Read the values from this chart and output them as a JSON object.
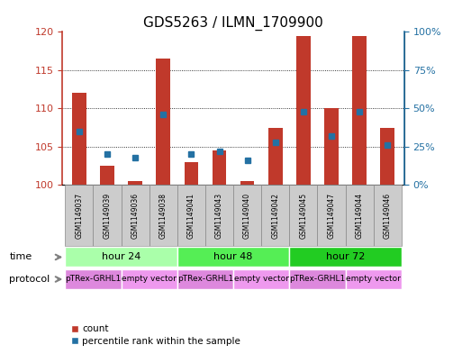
{
  "title": "GDS5263 / ILMN_1709900",
  "samples": [
    "GSM1149037",
    "GSM1149039",
    "GSM1149036",
    "GSM1149038",
    "GSM1149041",
    "GSM1149043",
    "GSM1149040",
    "GSM1149042",
    "GSM1149045",
    "GSM1149047",
    "GSM1149044",
    "GSM1149046"
  ],
  "count_values": [
    112,
    102.5,
    100.5,
    116.5,
    103,
    104.5,
    100.5,
    107.5,
    119.5,
    110,
    119.5,
    107.5
  ],
  "percentile_values": [
    35,
    20,
    18,
    46,
    20,
    22,
    16,
    28,
    48,
    32,
    48,
    26
  ],
  "ylim_left": [
    100,
    120
  ],
  "ylim_right": [
    0,
    100
  ],
  "yticks_left": [
    100,
    105,
    110,
    115,
    120
  ],
  "yticks_right": [
    0,
    25,
    50,
    75,
    100
  ],
  "bar_color": "#C0392B",
  "dot_color": "#2471A3",
  "left_axis_color": "#C0392B",
  "right_axis_color": "#2471A3",
  "title_fontsize": 11,
  "tick_fontsize": 8,
  "bar_width": 0.5,
  "time_groups": [
    {
      "label": "hour 24",
      "start": 0,
      "end": 4,
      "color": "#AAFFAA"
    },
    {
      "label": "hour 48",
      "start": 4,
      "end": 8,
      "color": "#55EE55"
    },
    {
      "label": "hour 72",
      "start": 8,
      "end": 12,
      "color": "#22CC22"
    }
  ],
  "protocol_groups": [
    {
      "label": "pTRex-GRHL1",
      "start": 0,
      "end": 2,
      "color": "#DD88DD"
    },
    {
      "label": "empty vector",
      "start": 2,
      "end": 4,
      "color": "#EE99EE"
    },
    {
      "label": "pTRex-GRHL1",
      "start": 4,
      "end": 6,
      "color": "#DD88DD"
    },
    {
      "label": "empty vector",
      "start": 6,
      "end": 8,
      "color": "#EE99EE"
    },
    {
      "label": "pTRex-GRHL1",
      "start": 8,
      "end": 10,
      "color": "#DD88DD"
    },
    {
      "label": "empty vector",
      "start": 10,
      "end": 12,
      "color": "#EE99EE"
    }
  ],
  "sample_box_color": "#CCCCCC",
  "sample_box_edge": "#888888"
}
